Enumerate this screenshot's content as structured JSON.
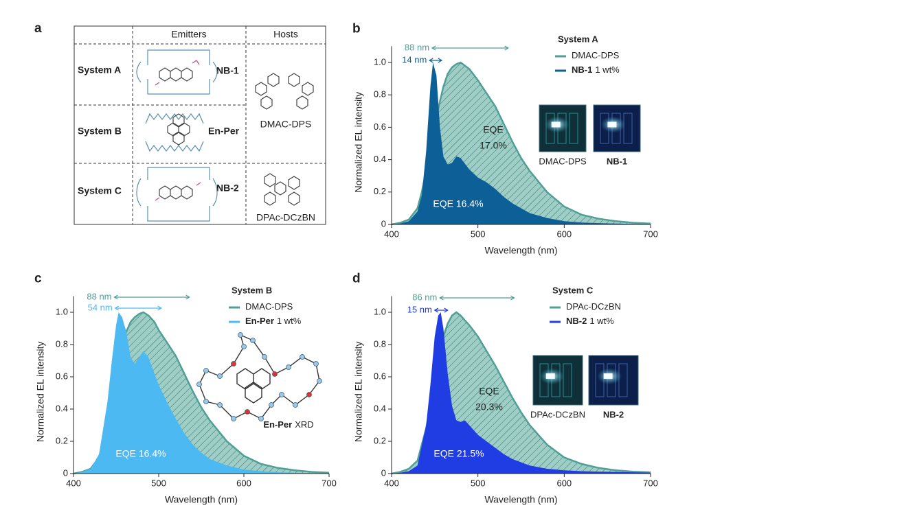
{
  "table": {
    "label": "a",
    "headers": [
      "Emitters",
      "Hosts"
    ],
    "rows": [
      {
        "system": "System A",
        "emitter": "NB-1"
      },
      {
        "system": "System B",
        "emitter": "En-Per"
      },
      {
        "system": "System C",
        "emitter": "NB-2"
      }
    ],
    "hosts": [
      "DMAC-DPS",
      "DPAc-DCzBN"
    ]
  },
  "chart_data": [
    {
      "type": "area",
      "label": "b",
      "xlabel": "Wavelength (nm)",
      "ylabel": "Normalized EL intensity",
      "xlim": [
        400,
        700
      ],
      "xticks": [
        400,
        500,
        600,
        700
      ],
      "ylim": [
        0,
        1.1
      ],
      "yticks": [
        0,
        0.2,
        0.4,
        0.6,
        0.8,
        {
          "value": 1,
          "label": "1.0"
        }
      ],
      "legend_title": "System A",
      "legend": "upper right",
      "x": [
        400,
        410,
        420,
        430,
        435,
        440,
        445,
        448,
        452,
        456,
        460,
        465,
        470,
        475,
        480,
        490,
        500,
        510,
        520,
        530,
        540,
        550,
        560,
        580,
        600,
        620,
        640,
        660,
        680,
        700
      ],
      "series": [
        {
          "name": "DMAC-DPS",
          "color": "#4f9f96",
          "hatched": true,
          "eqe": [
            "EQE",
            "17.0%"
          ],
          "values": [
            0,
            0.01,
            0.03,
            0.1,
            0.2,
            0.33,
            0.48,
            0.56,
            0.66,
            0.76,
            0.85,
            0.93,
            0.97,
            0.99,
            1.0,
            0.96,
            0.89,
            0.81,
            0.73,
            0.62,
            0.51,
            0.41,
            0.33,
            0.2,
            0.11,
            0.06,
            0.035,
            0.02,
            0.01,
            0.005
          ]
        },
        {
          "name": "NB-1",
          "note": "1 wt%",
          "color": "#0d5f97",
          "eqe": [
            "EQE 16.4%"
          ],
          "values": [
            0,
            0.005,
            0.02,
            0.08,
            0.18,
            0.45,
            0.85,
            1.0,
            0.92,
            0.6,
            0.42,
            0.37,
            0.38,
            0.42,
            0.41,
            0.34,
            0.29,
            0.26,
            0.22,
            0.17,
            0.13,
            0.1,
            0.07,
            0.04,
            0.02,
            0.012,
            0.008,
            0.005,
            0.003,
            0.002
          ]
        }
      ],
      "widths": [
        {
          "label": "88 nm",
          "from": 447,
          "to": 535
        },
        {
          "label": "14 nm",
          "from": 444,
          "to": 458
        }
      ],
      "insets": [
        {
          "caption": "DMAC-DPS",
          "bold": false
        },
        {
          "caption": "NB-1",
          "bold": true
        }
      ]
    },
    {
      "type": "area",
      "label": "c",
      "xlabel": "Wavelength (nm)",
      "ylabel": "Normalized EL intensity",
      "xlim": [
        400,
        700
      ],
      "xticks": [
        400,
        500,
        600,
        700
      ],
      "ylim": [
        0,
        1.1
      ],
      "yticks": [
        0,
        0.2,
        0.4,
        0.6,
        0.8,
        {
          "value": 1,
          "label": "1.0"
        }
      ],
      "legend_title": "System B",
      "legend": "upper right",
      "x": [
        400,
        410,
        420,
        430,
        440,
        445,
        450,
        453,
        457,
        462,
        467,
        472,
        477,
        482,
        488,
        495,
        500,
        510,
        520,
        530,
        540,
        550,
        560,
        580,
        600,
        620,
        640,
        660,
        680,
        700
      ],
      "series": [
        {
          "name": "DMAC-DPS",
          "color": "#4f9f96",
          "hatched": true,
          "values": [
            0,
            0.01,
            0.03,
            0.1,
            0.33,
            0.48,
            0.62,
            0.7,
            0.8,
            0.88,
            0.94,
            0.97,
            0.99,
            1.0,
            0.98,
            0.94,
            0.89,
            0.81,
            0.73,
            0.62,
            0.51,
            0.41,
            0.33,
            0.2,
            0.11,
            0.06,
            0.035,
            0.02,
            0.01,
            0.005
          ]
        },
        {
          "name": "En-Per",
          "note": "1 wt%",
          "color": "#4cb9f2",
          "eqe": [
            "EQE 16.4%"
          ],
          "values": [
            0,
            0.01,
            0.03,
            0.12,
            0.45,
            0.7,
            0.92,
            1.0,
            0.97,
            0.88,
            0.72,
            0.68,
            0.72,
            0.76,
            0.72,
            0.62,
            0.55,
            0.44,
            0.34,
            0.25,
            0.18,
            0.13,
            0.09,
            0.05,
            0.025,
            0.015,
            0.008,
            0.005,
            0.003,
            0.002
          ]
        }
      ],
      "widths": [
        {
          "label": "88 nm",
          "from": 448,
          "to": 536
        },
        {
          "label": "54 nm",
          "from": 449,
          "to": 503
        }
      ],
      "structure": {
        "name": "En-Per",
        "note": "XRD"
      }
    },
    {
      "type": "area",
      "label": "d",
      "xlabel": "Wavelength (nm)",
      "ylabel": "Normalized EL intensity",
      "xlim": [
        400,
        700
      ],
      "xticks": [
        400,
        500,
        600,
        700
      ],
      "ylim": [
        0,
        1.1
      ],
      "yticks": [
        0,
        0.2,
        0.4,
        0.6,
        0.8,
        {
          "value": 1,
          "label": "1.0"
        }
      ],
      "legend_title": "System C",
      "legend": "upper right",
      "x": [
        400,
        410,
        420,
        430,
        440,
        445,
        450,
        454,
        457,
        460,
        465,
        470,
        475,
        480,
        485,
        490,
        500,
        510,
        520,
        530,
        540,
        550,
        560,
        580,
        600,
        620,
        640,
        660,
        680,
        700
      ],
      "series": [
        {
          "name": "DPAc-DCzBN",
          "color": "#4f9f96",
          "hatched": true,
          "eqe": [
            "EQE",
            "20.3%"
          ],
          "values": [
            0,
            0.01,
            0.03,
            0.08,
            0.28,
            0.42,
            0.58,
            0.7,
            0.78,
            0.85,
            0.93,
            0.98,
            1.0,
            0.98,
            0.95,
            0.92,
            0.85,
            0.76,
            0.67,
            0.57,
            0.47,
            0.38,
            0.3,
            0.18,
            0.1,
            0.06,
            0.035,
            0.02,
            0.012,
            0.008
          ]
        },
        {
          "name": "NB-2",
          "note": "1 wt%",
          "color": "#1f3de3",
          "eqe": [
            "EQE 21.5%"
          ],
          "values": [
            0,
            0.005,
            0.015,
            0.05,
            0.3,
            0.55,
            0.85,
            0.98,
            1.0,
            0.9,
            0.62,
            0.42,
            0.33,
            0.32,
            0.33,
            0.3,
            0.24,
            0.2,
            0.16,
            0.12,
            0.09,
            0.07,
            0.05,
            0.03,
            0.02,
            0.015,
            0.012,
            0.01,
            0.008,
            0.006
          ]
        }
      ],
      "widths": [
        {
          "label": "86 nm",
          "from": 456,
          "to": 542
        },
        {
          "label": "15 nm",
          "from": 450,
          "to": 465
        }
      ],
      "insets": [
        {
          "caption": "DPAc-DCzBN",
          "bold": false
        },
        {
          "caption": "NB-2",
          "bold": true
        }
      ]
    }
  ]
}
